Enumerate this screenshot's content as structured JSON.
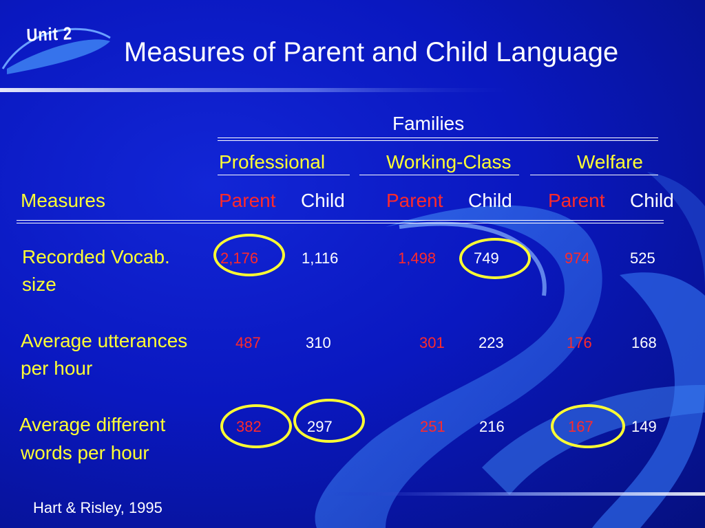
{
  "slide": {
    "unit_label": "Unit 2",
    "title": "Measures of Parent and Child Language",
    "source": "Hart & Risley, 1995",
    "colors": {
      "background": "#0a18c0",
      "highlight_circle": "#ffff33",
      "parent_value": "#ff2a2a",
      "measure_text": "#ffff33"
    }
  },
  "table": {
    "group_header": "Families",
    "measures_header": "Measures",
    "groups": [
      {
        "name": "Professional",
        "parent_label": "Parent",
        "child_label": "Child"
      },
      {
        "name": "Working-Class",
        "parent_label": "Parent",
        "child_label": "Child"
      },
      {
        "name": "Welfare",
        "parent_label": "Parent",
        "child_label": "Child"
      }
    ],
    "rows": [
      {
        "measure_line1": "Recorded Vocab.",
        "measure_line2": "size",
        "values": [
          "2,176",
          "1,116",
          "1,498",
          "749",
          "974",
          "525"
        ],
        "circled": [
          true,
          false,
          false,
          true,
          false,
          false
        ]
      },
      {
        "measure_line1": "Average utterances",
        "measure_line2": "per hour",
        "values": [
          "487",
          "310",
          "301",
          "223",
          "176",
          "168"
        ],
        "circled": [
          false,
          false,
          false,
          false,
          false,
          false
        ]
      },
      {
        "measure_line1": "Average different",
        "measure_line2": "words per hour",
        "values": [
          "382",
          "297",
          "251",
          "216",
          "167",
          "149"
        ],
        "circled": [
          true,
          true,
          false,
          false,
          true,
          false
        ]
      }
    ]
  }
}
